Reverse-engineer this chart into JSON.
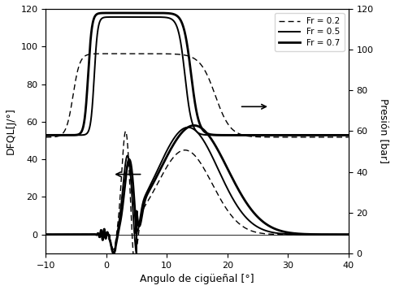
{
  "title": "",
  "xlabel": "Angulo de cigüeñal [°]",
  "ylabel_left": "DFQL[J/°]",
  "ylabel_right": "Presión [bar]",
  "xlim": [
    -10,
    40
  ],
  "ylim_left": [
    -10,
    120
  ],
  "ylim_right": [
    0,
    120
  ],
  "legend_labels": [
    "Fr = 0.2",
    "Fr = 0.5",
    "Fr = 0.7"
  ],
  "background_color": "#ffffff"
}
